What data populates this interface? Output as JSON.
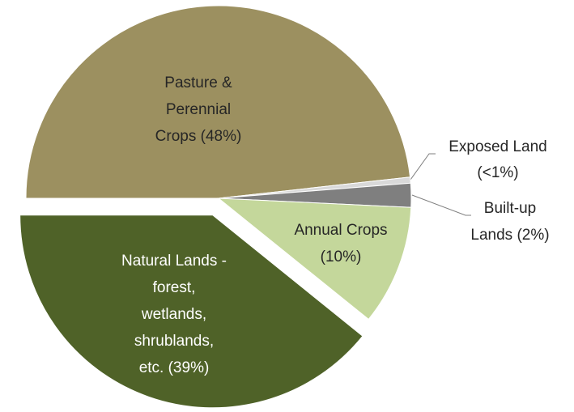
{
  "chart_data": {
    "type": "pie",
    "labels": [
      [
        "Pasture &",
        "Perennial",
        "Crops (48%)"
      ],
      [
        "Exposed Land",
        "(<1%)"
      ],
      [
        "Built-up",
        "Lands (2%)"
      ],
      [
        "Annual Crops",
        "(10%)"
      ],
      [
        "Natural Lands -",
        "forest,",
        "wetlands,",
        "shrublands,",
        "etc.  (39%)"
      ]
    ],
    "values": [
      48,
      0.5,
      2,
      10,
      39
    ],
    "colors": [
      "#9c9060",
      "#d9d9d9",
      "#7f7f7f",
      "#c4d79b",
      "#4f6228"
    ],
    "exploded": [
      false,
      false,
      false,
      false,
      true
    ]
  }
}
